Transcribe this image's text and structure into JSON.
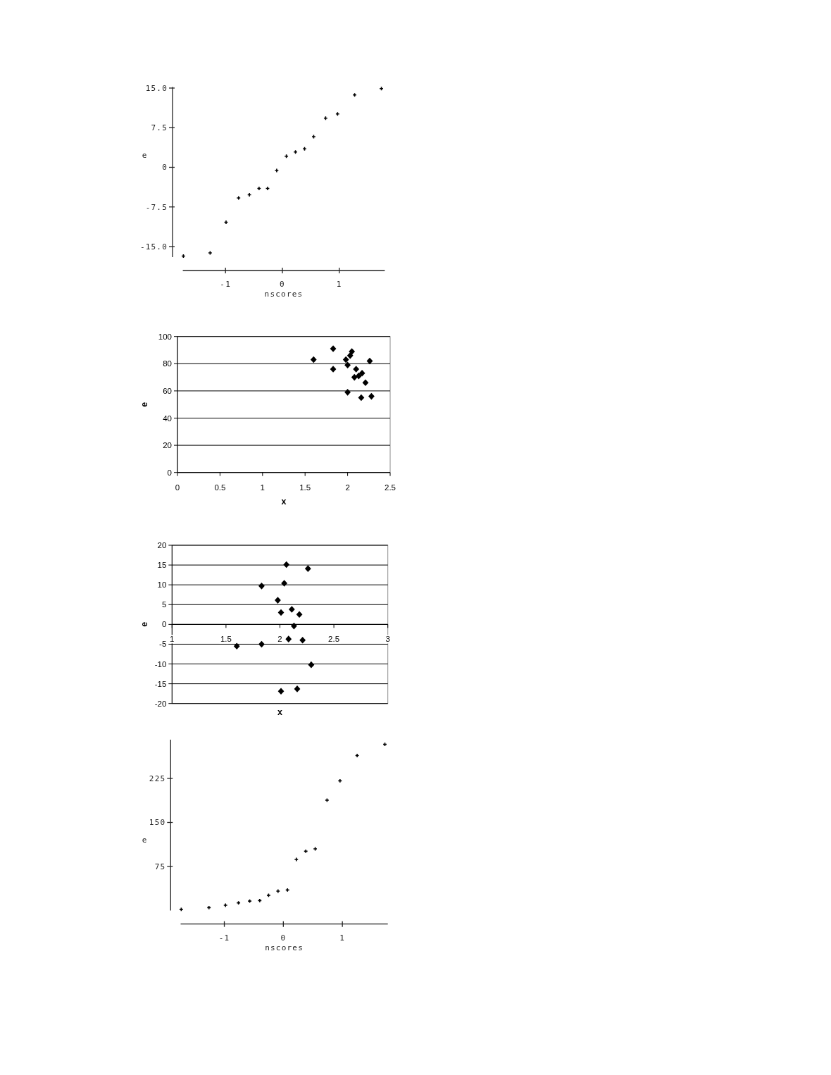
{
  "chart_data": [
    {
      "type": "scatter",
      "xlabel": "nscores",
      "ylabel": "e",
      "color": "#000000",
      "marker": "cross",
      "xlim": [
        -1.75,
        1.8
      ],
      "ylim": [
        -17,
        15.2
      ],
      "xticks": [
        -1,
        0,
        1
      ],
      "yticks": [
        {
          "value": -15,
          "label": "-15.0"
        },
        -7.5,
        0,
        7.5,
        {
          "value": 15,
          "label": "15.0"
        }
      ],
      "x": [
        -1.74,
        -1.27,
        -0.99,
        -0.77,
        -0.58,
        -0.41,
        -0.26,
        -0.1,
        0.07,
        0.23,
        0.39,
        0.55,
        0.76,
        0.97,
        1.27,
        1.74
      ],
      "values": [
        -16.8,
        -16.2,
        -10.4,
        -5.8,
        -5.2,
        -4.0,
        -4.0,
        -0.6,
        2.1,
        2.9,
        3.5,
        5.8,
        9.3,
        10.1,
        13.7,
        14.9
      ]
    },
    {
      "type": "scatter",
      "xlabel": "x",
      "ylabel": "e",
      "color": "#000000",
      "marker": "diamond",
      "grid": "y",
      "xlim": [
        0,
        2.5
      ],
      "ylim": [
        0,
        100
      ],
      "xticks": [
        0,
        0.5,
        1,
        1.5,
        2,
        2.5
      ],
      "yticks": [
        0,
        20,
        40,
        60,
        80,
        100
      ],
      "x": [
        1.6,
        1.83,
        1.83,
        1.98,
        2.03,
        2.05,
        2.0,
        2.1,
        2.08,
        2.13,
        2.17,
        2.21,
        2.26,
        2.0,
        2.16,
        2.28
      ],
      "values": [
        83,
        91,
        76,
        83,
        86,
        89,
        79,
        76,
        70,
        71,
        73,
        66,
        82,
        59,
        55,
        56
      ]
    },
    {
      "type": "scatter",
      "xlabel": "x",
      "ylabel": "e",
      "color": "#000000",
      "marker": "diamond",
      "grid": "y",
      "xlim": [
        1,
        3
      ],
      "ylim": [
        -20,
        20
      ],
      "xticks": [
        1,
        1.5,
        2,
        2.5,
        3
      ],
      "yticks": [
        -20,
        -15,
        -10,
        -5,
        0,
        5,
        10,
        15,
        20
      ],
      "x": [
        1.83,
        2.06,
        2.26,
        2.04,
        1.98,
        2.01,
        2.11,
        2.18,
        2.13,
        2.08,
        2.21,
        1.6,
        1.83,
        2.29,
        2.01,
        2.16
      ],
      "values": [
        9.7,
        15.1,
        14.1,
        10.4,
        6.1,
        3.0,
        3.8,
        2.5,
        -0.4,
        -3.7,
        -4.0,
        -5.5,
        -5.0,
        -10.2,
        -16.9,
        -16.3
      ]
    },
    {
      "type": "scatter",
      "xlabel": "nscores",
      "ylabel": "e",
      "color": "#000000",
      "marker": "cross",
      "xlim": [
        -1.74,
        1.77
      ],
      "ylim": [
        0,
        291
      ],
      "xticks": [
        -1,
        0,
        1
      ],
      "yticks": [
        75,
        150,
        225
      ],
      "x": [
        -1.73,
        -1.26,
        -0.98,
        -0.76,
        -0.57,
        -0.4,
        -0.25,
        -0.09,
        0.07,
        0.22,
        0.38,
        0.54,
        0.74,
        0.96,
        1.25,
        1.72
      ],
      "values": [
        2,
        5,
        9,
        13,
        16,
        17,
        26,
        33,
        35,
        87,
        101,
        105,
        188,
        221,
        264,
        283
      ]
    }
  ]
}
